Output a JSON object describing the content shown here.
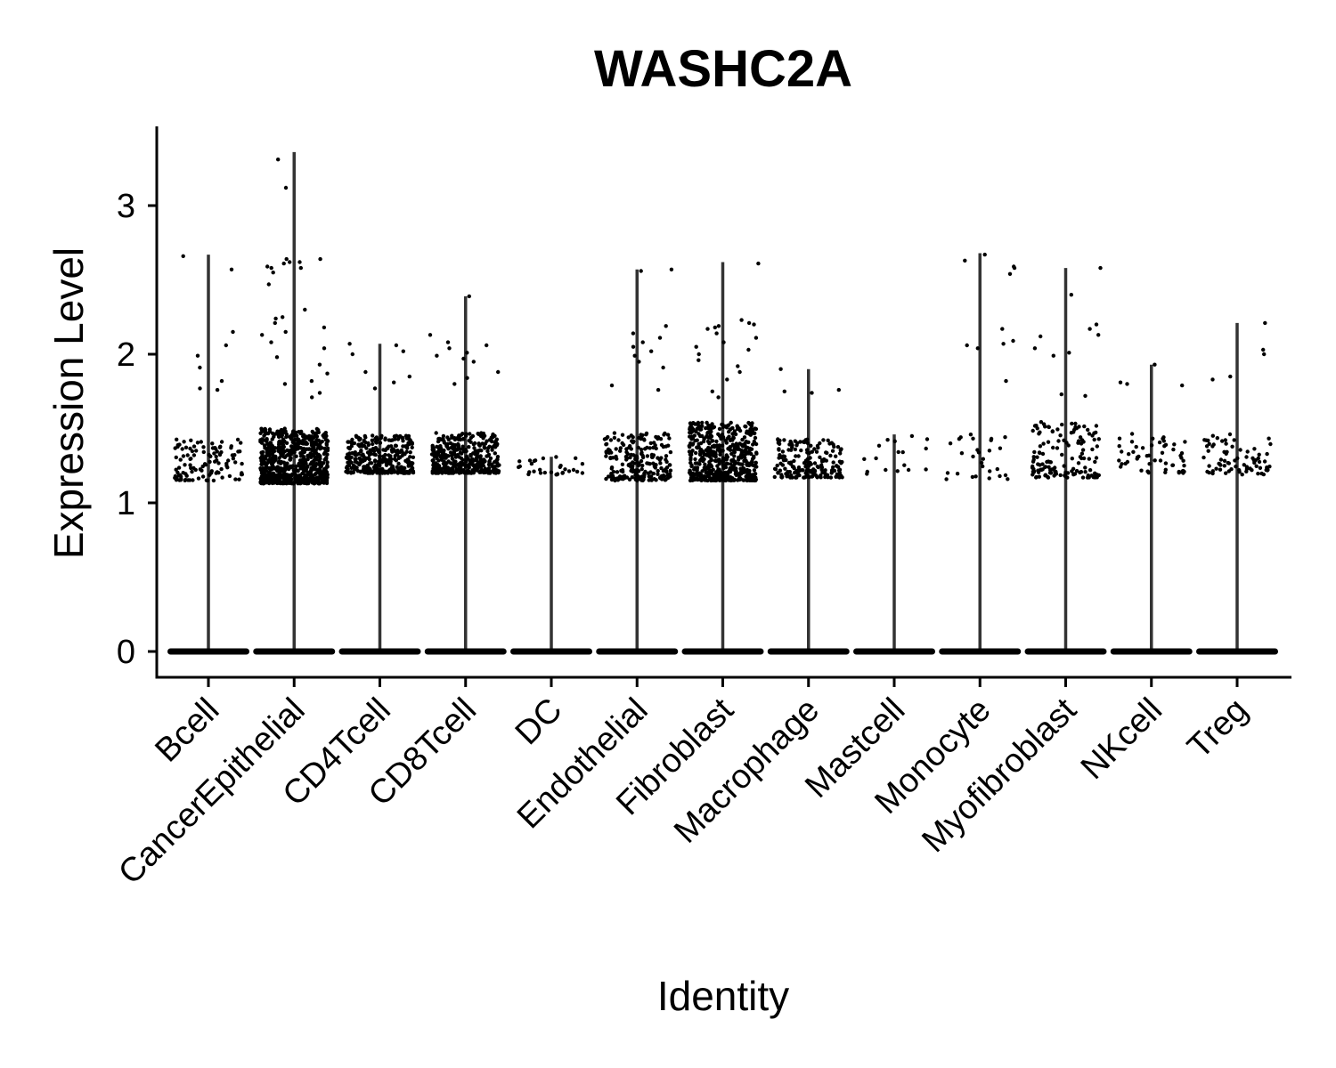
{
  "chart_data": {
    "type": "violin",
    "title": "WASHC2A",
    "xlabel": "Identity",
    "ylabel": "Expression Level",
    "ylim": [
      -0.17,
      3.52
    ],
    "yticks": [
      0,
      1,
      2,
      3
    ],
    "grid": false,
    "legend": "none",
    "categories": [
      "Bcell",
      "CancerEpithelial",
      "CD4Tcell",
      "CD8Tcell",
      "DC",
      "Endothelial",
      "Fibroblast",
      "Macrophage",
      "Mastcell",
      "Monocyte",
      "Myofibroblast",
      "NKcell",
      "Treg"
    ],
    "max_values": [
      2.67,
      3.36,
      2.07,
      2.39,
      1.31,
      2.57,
      2.62,
      1.9,
      1.46,
      2.68,
      2.58,
      1.93,
      2.21
    ],
    "nonzero_bulk_range": [
      [
        1.15,
        1.45
      ],
      [
        1.13,
        1.5
      ],
      [
        1.2,
        1.46
      ],
      [
        1.2,
        1.47
      ],
      [
        1.19,
        1.31
      ],
      [
        1.15,
        1.47
      ],
      [
        1.15,
        1.54
      ],
      [
        1.17,
        1.43
      ],
      [
        1.19,
        1.46
      ],
      [
        1.15,
        1.47
      ],
      [
        1.17,
        1.55
      ],
      [
        1.2,
        1.47
      ],
      [
        1.19,
        1.47
      ]
    ],
    "nonzero_point_counts": [
      110,
      720,
      330,
      380,
      30,
      220,
      560,
      190,
      17,
      24,
      140,
      55,
      75
    ],
    "outlier_values": [
      [
        2.66,
        2.15,
        2.06,
        1.99,
        1.91,
        1.82,
        1.77,
        1.76,
        2.57
      ],
      [
        3.31,
        3.12,
        2.64,
        2.62,
        2.61,
        2.59,
        2.58,
        2.47,
        2.24,
        2.21,
        2.15,
        2.13,
        2.08,
        2.04,
        1.98,
        1.93,
        1.87,
        1.82,
        1.8,
        1.74,
        1.71,
        2.3,
        2.25,
        2.18,
        2.64,
        2.62,
        2.58,
        2.55
      ],
      [
        2.07,
        2.06,
        2.02,
        2.0,
        1.88,
        1.85,
        1.81,
        1.77
      ],
      [
        2.39,
        2.13,
        2.08,
        2.06,
        2.04,
        2.01,
        1.99,
        1.97,
        1.95,
        1.88,
        1.84,
        1.8
      ],
      [],
      [
        2.57,
        2.56,
        2.19,
        2.14,
        2.11,
        2.08,
        2.05,
        2.02,
        1.99,
        1.95,
        1.91,
        1.79,
        1.76
      ],
      [
        2.61,
        2.23,
        2.21,
        2.19,
        2.17,
        2.14,
        2.11,
        2.08,
        2.05,
        2.03,
        2.0,
        1.96,
        1.92,
        1.88,
        1.83,
        1.75,
        1.71,
        2.2,
        2.18
      ],
      [
        1.9,
        1.76,
        1.75,
        1.74
      ],
      [],
      [
        2.67,
        2.63,
        2.59,
        2.58,
        2.54,
        2.17,
        2.09,
        2.07,
        2.06,
        2.04,
        1.82,
        1.46,
        1.43,
        1.4,
        1.16
      ],
      [
        2.58,
        2.4,
        2.2,
        2.17,
        2.13,
        2.12,
        2.04,
        2.01,
        1.99,
        1.73,
        1.72
      ],
      [
        1.93,
        1.81,
        1.8,
        1.79
      ],
      [
        2.21,
        2.03,
        2.0,
        1.85,
        1.83
      ]
    ]
  }
}
